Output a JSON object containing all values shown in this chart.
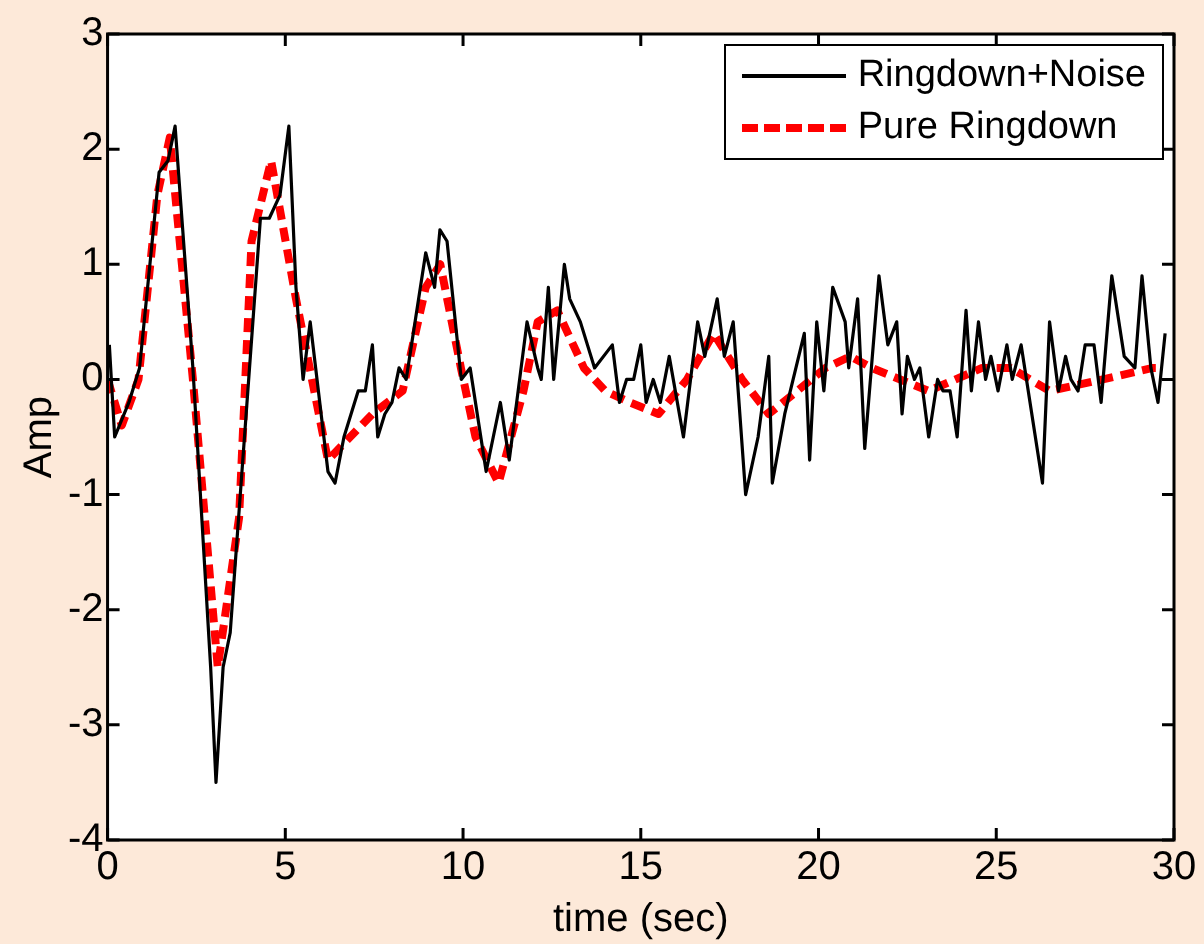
{
  "chart_data": {
    "type": "line",
    "xlabel": "time (sec)",
    "ylabel": "Amp",
    "xlim": [
      0,
      30
    ],
    "xticks": [
      0,
      5,
      10,
      15,
      20,
      25,
      30
    ],
    "ylim": [
      -4,
      3
    ],
    "yticks": [
      -4,
      -3,
      -2,
      -1,
      0,
      1,
      2,
      3
    ],
    "grid": false,
    "legend": "top right",
    "marker": "none",
    "series": [
      {
        "name": "Ringdown+Noise",
        "color": "#000000",
        "line_style": "solid",
        "x": [
          0.05,
          0.2,
          0.6,
          0.9,
          1.45,
          1.7,
          1.9,
          2.4,
          2.9,
          3.05,
          3.25,
          3.45,
          4.3,
          4.55,
          4.85,
          5.1,
          5.3,
          5.5,
          5.7,
          6.2,
          6.4,
          6.65,
          7.05,
          7.25,
          7.45,
          7.6,
          7.8,
          8.0,
          8.2,
          8.4,
          8.95,
          9.2,
          9.35,
          9.55,
          9.95,
          10.2,
          10.65,
          11.05,
          11.3,
          11.8,
          12.1,
          12.2,
          12.4,
          12.55,
          12.85,
          13.0,
          13.3,
          13.7,
          14.2,
          14.4,
          14.6,
          14.8,
          15.0,
          15.15,
          15.35,
          15.55,
          15.8,
          16.2,
          16.6,
          16.8,
          17.15,
          17.35,
          17.6,
          17.95,
          18.3,
          18.6,
          18.7,
          19.05,
          19.6,
          19.75,
          19.95,
          20.15,
          20.4,
          20.75,
          20.85,
          21.1,
          21.3,
          21.7,
          21.95,
          22.2,
          22.35,
          22.5,
          22.7,
          22.85,
          23.1,
          23.35,
          23.5,
          23.7,
          23.9,
          24.15,
          24.3,
          24.5,
          24.7,
          24.85,
          25.05,
          25.3,
          25.45,
          25.7,
          25.9,
          26.3,
          26.5,
          26.75,
          26.95,
          27.1,
          27.3,
          27.5,
          27.75,
          27.95,
          28.25,
          28.6,
          28.9,
          29.1,
          29.35,
          29.55,
          29.75
        ],
        "values": [
          0.3,
          -0.5,
          -0.2,
          0.1,
          1.8,
          1.9,
          2.2,
          0.1,
          -2.5,
          -3.5,
          -2.5,
          -2.2,
          1.4,
          1.4,
          1.6,
          2.2,
          0.8,
          0,
          0.5,
          -0.8,
          -0.9,
          -0.5,
          -0.1,
          -0.1,
          0.3,
          -0.5,
          -0.3,
          -0.2,
          0.1,
          0,
          1.1,
          0.8,
          1.3,
          1.2,
          0,
          0.1,
          -0.8,
          -0.2,
          -0.7,
          0.5,
          0.1,
          0,
          0.8,
          0,
          1,
          0.7,
          0.5,
          0.1,
          0.3,
          -0.2,
          0,
          0,
          0.3,
          -0.2,
          0,
          -0.2,
          0.2,
          -0.5,
          0.5,
          0.2,
          0.7,
          0.2,
          0.5,
          -1,
          -0.5,
          0.2,
          -0.9,
          -0.3,
          0.4,
          -0.7,
          0.5,
          -0.1,
          0.8,
          0.5,
          0.1,
          0.7,
          -0.6,
          0.9,
          0.3,
          0.5,
          -0.3,
          0.2,
          0,
          0.1,
          -0.5,
          0,
          -0.1,
          -0.1,
          -0.5,
          0.6,
          -0.1,
          0.5,
          0,
          0.2,
          -0.1,
          0.3,
          0,
          0.3,
          -0.1,
          -0.9,
          0.5,
          -0.1,
          0.2,
          0,
          -0.1,
          0.3,
          0.3,
          -0.2,
          0.9,
          0.2,
          0.1,
          0.9,
          0.1,
          -0.2,
          0.4
        ]
      },
      {
        "name": "Pure Ringdown",
        "color": "#ff0000",
        "line_style": "dashed",
        "x": [
          0,
          0.4,
          0.87,
          1.4,
          1.75,
          2.4,
          3.1,
          3.7,
          4.05,
          4.6,
          5.3,
          6.2,
          7.45,
          8.3,
          8.95,
          9.36,
          9.94,
          10.35,
          11,
          11.7,
          12.1,
          12.65,
          13.4,
          14,
          14.7,
          15.5,
          16.3,
          17.05,
          17.85,
          18.6,
          19.4,
          20.2,
          20.9,
          21.5,
          23.1,
          24.6,
          25.4,
          26.5,
          28,
          29.4,
          29.6
        ],
        "values": [
          0,
          -0.4,
          0,
          1.6,
          2.1,
          0,
          -2.5,
          -1.2,
          1.2,
          1.9,
          0.7,
          -0.7,
          -0.3,
          -0.1,
          0.8,
          1,
          0.1,
          -0.5,
          -0.9,
          -0.1,
          0.5,
          0.6,
          0.1,
          -0.1,
          -0.2,
          -0.3,
          0,
          0.4,
          0,
          -0.3,
          -0.1,
          0.1,
          0.2,
          0.1,
          -0.1,
          0.1,
          0.1,
          -0.1,
          0,
          0.1,
          0.1
        ]
      }
    ]
  }
}
